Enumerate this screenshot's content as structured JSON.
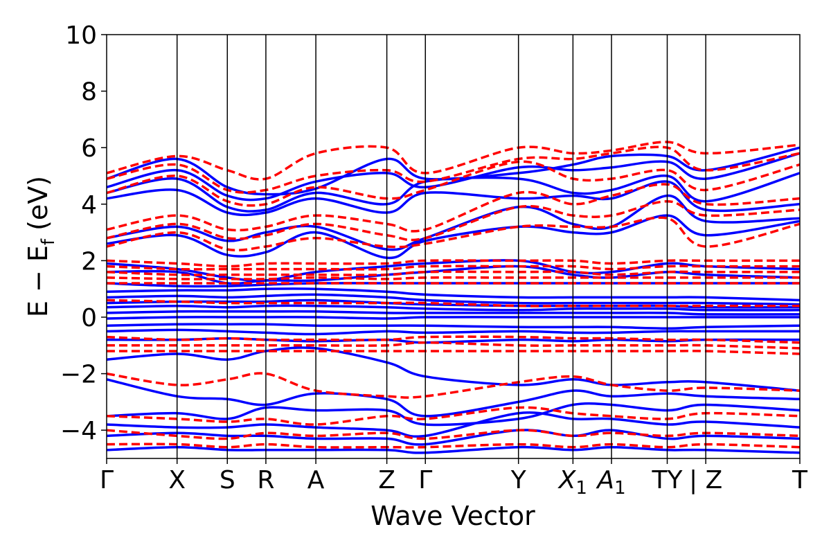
{
  "chart_data": {
    "type": "line",
    "title": "",
    "xlabel": "Wave Vector",
    "ylabel_parts": {
      "main": "E − E",
      "sub": "f",
      "unit": " (eV)"
    },
    "ylim": [
      -5,
      10
    ],
    "yticks": [
      {
        "value": 10,
        "label": "10"
      },
      {
        "value": 8,
        "label": "8"
      },
      {
        "value": 6,
        "label": "6"
      },
      {
        "value": 4,
        "label": "4"
      },
      {
        "value": 2,
        "label": "2"
      },
      {
        "value": 0,
        "label": "0"
      },
      {
        "value": -2,
        "label": "−2"
      },
      {
        "value": -4,
        "label": "−4"
      }
    ],
    "kpath_positions": [
      0,
      0.1016,
      0.1741,
      0.2297,
      0.3018,
      0.4042,
      0.4598,
      0.5941,
      0.6727,
      0.7283,
      0.8087,
      0.8643,
      1.0
    ],
    "xtick_labels": [
      {
        "pos": 0,
        "label": "Γ",
        "italic": false,
        "sub": ""
      },
      {
        "pos": 0.1016,
        "label": "X",
        "italic": false,
        "sub": ""
      },
      {
        "pos": 0.1741,
        "label": "S",
        "italic": false,
        "sub": ""
      },
      {
        "pos": 0.2297,
        "label": "R",
        "italic": false,
        "sub": ""
      },
      {
        "pos": 0.3018,
        "label": "A",
        "italic": false,
        "sub": ""
      },
      {
        "pos": 0.4042,
        "label": "Z",
        "italic": false,
        "sub": ""
      },
      {
        "pos": 0.4598,
        "label": "Γ",
        "italic": false,
        "sub": ""
      },
      {
        "pos": 0.5941,
        "label": "Y",
        "italic": false,
        "sub": ""
      },
      {
        "pos": 0.6727,
        "label": "X",
        "italic": true,
        "sub": "1"
      },
      {
        "pos": 0.7283,
        "label": "A",
        "italic": true,
        "sub": "1"
      },
      {
        "pos": 0.8087,
        "label": "TY",
        "italic": false,
        "sub": ""
      },
      {
        "pos": 0.8643,
        "label": "| Z",
        "italic": false,
        "sub": ""
      },
      {
        "pos": 1.0,
        "label": "T",
        "italic": false,
        "sub": ""
      }
    ],
    "series": [
      {
        "style": "solid",
        "color": "#0000ff",
        "bands": [
          [
            4.9,
            5.6,
            4.6,
            4.35,
            4.55,
            5.6,
            4.9,
            5.1,
            5.4,
            5.7,
            5.7,
            5.2,
            6.0
          ],
          [
            4.6,
            5.2,
            4.3,
            4.2,
            4.8,
            5.1,
            4.6,
            5.3,
            5.2,
            5.3,
            5.5,
            4.9,
            5.8
          ],
          [
            4.4,
            4.9,
            3.9,
            3.8,
            4.4,
            4.0,
            4.8,
            4.9,
            4.4,
            4.5,
            5.0,
            4.1,
            5.1
          ],
          [
            4.2,
            4.5,
            3.7,
            3.7,
            4.2,
            3.7,
            4.4,
            4.2,
            4.3,
            4.2,
            4.8,
            3.8,
            4.0
          ],
          [
            2.8,
            3.2,
            2.7,
            3.0,
            3.2,
            2.4,
            2.8,
            3.9,
            3.3,
            3.2,
            4.3,
            3.4,
            3.5
          ],
          [
            2.6,
            2.9,
            2.2,
            2.3,
            3.0,
            2.1,
            2.7,
            3.2,
            3.0,
            3.0,
            3.6,
            2.9,
            3.4
          ],
          [
            1.9,
            1.7,
            1.4,
            1.3,
            1.6,
            1.8,
            1.9,
            2.0,
            1.6,
            1.6,
            1.9,
            1.8,
            1.7
          ],
          [
            1.6,
            1.6,
            1.2,
            1.3,
            1.3,
            1.5,
            1.6,
            1.8,
            1.5,
            1.4,
            1.6,
            1.5,
            1.4
          ],
          [
            1.2,
            1.1,
            1.1,
            1.15,
            1.2,
            1.2,
            1.2,
            1.2,
            1.2,
            1.2,
            1.2,
            1.2,
            1.2
          ],
          [
            0.9,
            0.95,
            0.95,
            1.0,
            1.0,
            0.9,
            0.8,
            0.7,
            0.7,
            0.7,
            0.7,
            0.7,
            0.6
          ],
          [
            0.7,
            0.75,
            0.7,
            0.75,
            0.8,
            0.7,
            0.6,
            0.5,
            0.5,
            0.5,
            0.5,
            0.5,
            0.45
          ],
          [
            0.5,
            0.55,
            0.55,
            0.55,
            0.6,
            0.5,
            0.45,
            0.4,
            0.4,
            0.4,
            0.4,
            0.35,
            0.35
          ],
          [
            0.35,
            0.4,
            0.35,
            0.4,
            0.4,
            0.35,
            0.3,
            0.25,
            0.3,
            0.3,
            0.3,
            0.25,
            0.25
          ],
          [
            0.15,
            0.2,
            0.2,
            0.2,
            0.2,
            0.15,
            0.15,
            0.15,
            0.15,
            0.15,
            0.15,
            0.1,
            0.1
          ],
          [
            -0.05,
            0.0,
            0.0,
            0.0,
            0.0,
            -0.05,
            0.0,
            0.0,
            0.0,
            0.0,
            0.0,
            0.0,
            0.0
          ],
          [
            -0.3,
            -0.25,
            -0.25,
            -0.25,
            -0.3,
            -0.3,
            -0.3,
            -0.35,
            -0.35,
            -0.35,
            -0.4,
            -0.35,
            -0.3
          ],
          [
            -0.5,
            -0.45,
            -0.5,
            -0.55,
            -0.6,
            -0.5,
            -0.55,
            -0.5,
            -0.55,
            -0.55,
            -0.5,
            -0.5,
            -0.5
          ],
          [
            -0.8,
            -0.8,
            -0.75,
            -0.8,
            -0.85,
            -0.8,
            -0.9,
            -0.8,
            -0.85,
            -0.8,
            -0.85,
            -0.8,
            -0.8
          ],
          [
            -1.5,
            -1.3,
            -1.5,
            -1.2,
            -1.1,
            -1.6,
            -2.1,
            -2.4,
            -2.2,
            -2.4,
            -2.3,
            -2.3,
            -2.6
          ],
          [
            -2.2,
            -2.8,
            -2.9,
            -3.1,
            -2.7,
            -2.9,
            -3.5,
            -3.0,
            -2.6,
            -2.8,
            -2.7,
            -2.8,
            -2.9
          ],
          [
            -3.5,
            -3.4,
            -3.6,
            -3.2,
            -3.3,
            -3.3,
            -3.8,
            -3.6,
            -3.1,
            -3.1,
            -3.3,
            -3.1,
            -3.3
          ],
          [
            -3.8,
            -3.9,
            -3.9,
            -3.8,
            -3.9,
            -4.0,
            -4.2,
            -3.4,
            -3.6,
            -3.6,
            -3.8,
            -3.7,
            -3.9
          ],
          [
            -4.2,
            -4.1,
            -4.2,
            -4.2,
            -4.3,
            -4.3,
            -4.5,
            -4.0,
            -4.2,
            -4.0,
            -4.3,
            -4.2,
            -4.3
          ],
          [
            -4.7,
            -4.6,
            -4.7,
            -4.7,
            -4.7,
            -4.7,
            -4.8,
            -4.6,
            -4.7,
            -4.6,
            -4.7,
            -4.7,
            -4.8
          ]
        ]
      },
      {
        "style": "dashed",
        "color": "#ff0000",
        "bands": [
          [
            5.1,
            5.7,
            5.2,
            4.9,
            5.8,
            6.0,
            5.1,
            6.0,
            5.8,
            5.9,
            6.2,
            5.8,
            6.1
          ],
          [
            4.9,
            5.4,
            4.5,
            4.5,
            5.0,
            5.2,
            4.8,
            5.6,
            5.6,
            5.8,
            6.0,
            5.2,
            5.8
          ],
          [
            4.4,
            5.0,
            4.1,
            4.0,
            4.6,
            4.2,
            4.5,
            5.5,
            4.9,
            4.9,
            5.2,
            4.5,
            5.4
          ],
          [
            3.1,
            3.6,
            3.1,
            3.2,
            3.6,
            3.3,
            3.1,
            4.4,
            4.0,
            4.3,
            4.7,
            4.0,
            4.2
          ],
          [
            2.8,
            3.3,
            2.8,
            2.9,
            3.3,
            2.9,
            2.8,
            3.9,
            3.6,
            3.6,
            4.1,
            3.6,
            3.8
          ],
          [
            2.5,
            3.0,
            2.4,
            2.5,
            2.8,
            2.5,
            2.6,
            3.2,
            3.2,
            3.2,
            3.5,
            2.5,
            3.3
          ],
          [
            2.0,
            1.9,
            1.8,
            1.9,
            1.9,
            1.9,
            2.0,
            2.0,
            2.0,
            1.9,
            2.0,
            2.0,
            2.0
          ],
          [
            1.8,
            1.7,
            1.7,
            1.7,
            1.7,
            1.7,
            1.8,
            1.8,
            1.8,
            1.7,
            1.8,
            1.8,
            1.8
          ],
          [
            1.6,
            1.5,
            1.5,
            1.5,
            1.5,
            1.5,
            1.6,
            1.6,
            1.6,
            1.5,
            1.6,
            1.6,
            1.6
          ],
          [
            1.4,
            1.35,
            1.35,
            1.35,
            1.4,
            1.35,
            1.4,
            1.4,
            1.4,
            1.4,
            1.4,
            1.4,
            1.4
          ],
          [
            1.2,
            1.2,
            1.2,
            1.2,
            1.2,
            1.2,
            1.2,
            1.2,
            1.2,
            1.2,
            1.2,
            1.2,
            1.2
          ],
          [
            0.6,
            0.55,
            0.5,
            0.5,
            0.5,
            0.5,
            0.5,
            0.4,
            0.4,
            0.4,
            0.4,
            0.4,
            0.4
          ],
          [
            -0.7,
            -0.8,
            -0.75,
            -0.8,
            -0.8,
            -0.8,
            -0.7,
            -0.7,
            -0.75,
            -0.75,
            -0.8,
            -0.8,
            -0.9
          ],
          [
            -1.0,
            -1.0,
            -1.0,
            -1.0,
            -1.0,
            -1.0,
            -0.9,
            -1.0,
            -1.0,
            -1.0,
            -1.0,
            -1.0,
            -1.1
          ],
          [
            -1.2,
            -1.2,
            -1.2,
            -1.2,
            -1.2,
            -1.2,
            -1.2,
            -1.2,
            -1.2,
            -1.2,
            -1.2,
            -1.2,
            -1.3
          ],
          [
            -2.0,
            -2.4,
            -2.2,
            -2.0,
            -2.6,
            -2.8,
            -2.8,
            -2.3,
            -2.1,
            -2.4,
            -2.6,
            -2.5,
            -2.6
          ],
          [
            -3.5,
            -3.6,
            -3.7,
            -3.6,
            -3.8,
            -3.5,
            -3.6,
            -3.2,
            -3.4,
            -3.5,
            -3.6,
            -3.4,
            -3.5
          ],
          [
            -4.0,
            -4.2,
            -4.3,
            -4.1,
            -4.2,
            -4.1,
            -4.3,
            -4.0,
            -4.2,
            -4.1,
            -4.2,
            -4.1,
            -4.2
          ],
          [
            -4.5,
            -4.5,
            -4.6,
            -4.5,
            -4.6,
            -4.6,
            -4.6,
            -4.5,
            -4.6,
            -4.5,
            -4.6,
            -4.5,
            -4.6
          ]
        ]
      }
    ]
  }
}
